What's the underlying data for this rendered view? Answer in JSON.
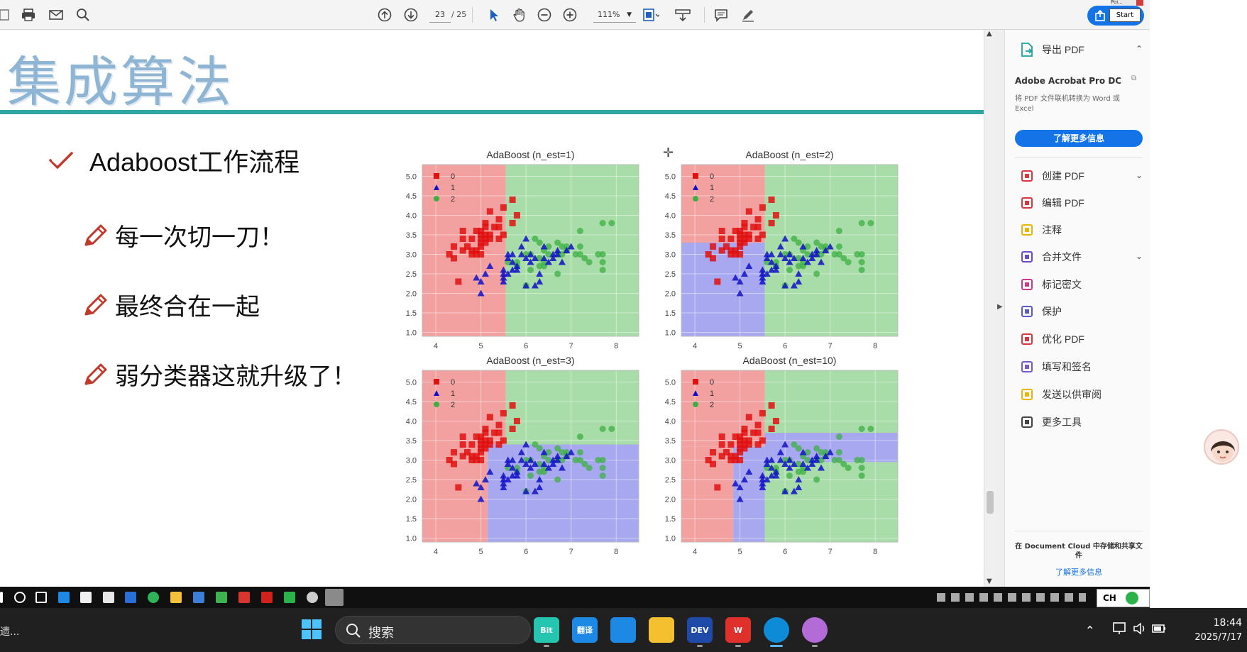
{
  "toolbar": {
    "page_current": "23",
    "page_total": "/ 25",
    "zoom": "111%"
  },
  "popup": {
    "start_top": "Poi...",
    "start_label": "Start"
  },
  "slide": {
    "title": "集成算法",
    "bullets": [
      {
        "text": "Adaboost工作流程"
      },
      {
        "text": "每一次切一刀！"
      },
      {
        "text": "最终合在一起"
      },
      {
        "text": "弱分类器这就升级了！"
      }
    ]
  },
  "chart_data": [
    {
      "type": "scatter",
      "title": "AdaBoost (n_est=1)",
      "xlim": [
        3.7,
        8.5
      ],
      "ylim": [
        0.9,
        5.3
      ],
      "xticks": [
        4,
        5,
        6,
        7,
        8
      ],
      "yticks": [
        "1.0",
        "1.5",
        "2.0",
        "2.5",
        "3.0",
        "3.5",
        "4.0",
        "4.5",
        "5.0"
      ],
      "legend": [
        "0",
        "1",
        "2"
      ],
      "legend_position": "top-left",
      "region_colors": {
        "0": "#f2a0a0",
        "1": "#a8a8f0",
        "2": "#a8dca8"
      },
      "regions": [
        {
          "class": "0",
          "x": [
            3.7,
            5.55
          ],
          "y": [
            0.9,
            5.3
          ]
        },
        {
          "class": "2",
          "x": [
            5.55,
            8.5
          ],
          "y": [
            0.9,
            5.3
          ]
        }
      ]
    },
    {
      "type": "scatter",
      "title": "AdaBoost (n_est=2)",
      "xlim": [
        3.7,
        8.5
      ],
      "ylim": [
        0.9,
        5.3
      ],
      "xticks": [
        4,
        5,
        6,
        7,
        8
      ],
      "yticks": [
        "1.0",
        "1.5",
        "2.0",
        "2.5",
        "3.0",
        "3.5",
        "4.0",
        "4.5",
        "5.0"
      ],
      "legend": [
        "0",
        "1",
        "2"
      ],
      "legend_position": "top-left",
      "region_colors": {
        "0": "#f2a0a0",
        "1": "#a8a8f0",
        "2": "#a8dca8"
      },
      "regions": [
        {
          "class": "0",
          "x": [
            3.7,
            5.55
          ],
          "y": [
            3.3,
            5.3
          ]
        },
        {
          "class": "1",
          "x": [
            3.7,
            5.55
          ],
          "y": [
            0.9,
            3.3
          ]
        },
        {
          "class": "2",
          "x": [
            5.55,
            8.5
          ],
          "y": [
            0.9,
            5.3
          ]
        }
      ]
    },
    {
      "type": "scatter",
      "title": "AdaBoost (n_est=3)",
      "xlim": [
        3.7,
        8.5
      ],
      "ylim": [
        0.9,
        5.3
      ],
      "xticks": [
        4,
        5,
        6,
        7,
        8
      ],
      "yticks": [
        "1.0",
        "1.5",
        "2.0",
        "2.5",
        "3.0",
        "3.5",
        "4.0",
        "4.5",
        "5.0"
      ],
      "legend": [
        "0",
        "1",
        "2"
      ],
      "legend_position": "top-left",
      "region_colors": {
        "0": "#f2a0a0",
        "1": "#a8a8f0",
        "2": "#a8dca8"
      },
      "regions": [
        {
          "class": "0",
          "x": [
            3.7,
            5.55
          ],
          "y": [
            3.4,
            5.3
          ]
        },
        {
          "class": "0",
          "x": [
            3.7,
            5.15
          ],
          "y": [
            0.9,
            3.4
          ]
        },
        {
          "class": "1",
          "x": [
            5.15,
            8.5
          ],
          "y": [
            0.9,
            3.4
          ]
        },
        {
          "class": "2",
          "x": [
            5.55,
            8.5
          ],
          "y": [
            3.4,
            5.3
          ]
        }
      ]
    },
    {
      "type": "scatter",
      "title": "AdaBoost (n_est=10)",
      "xlim": [
        3.7,
        8.5
      ],
      "ylim": [
        0.9,
        5.3
      ],
      "xticks": [
        4,
        5,
        6,
        7,
        8
      ],
      "yticks": [
        "1.0",
        "1.5",
        "2.0",
        "2.5",
        "3.0",
        "3.5",
        "4.0",
        "4.5",
        "5.0"
      ],
      "legend": [
        "0",
        "1",
        "2"
      ],
      "legend_position": "top-left",
      "region_colors": {
        "0": "#f2a0a0",
        "1": "#a8a8f0",
        "2": "#a8dca8"
      },
      "regions": [
        {
          "class": "0",
          "x": [
            3.7,
            5.55
          ],
          "y": [
            3.35,
            5.3
          ]
        },
        {
          "class": "0",
          "x": [
            3.7,
            4.85
          ],
          "y": [
            0.9,
            3.35
          ]
        },
        {
          "class": "1",
          "x": [
            4.85,
            5.55
          ],
          "y": [
            0.9,
            3.35
          ]
        },
        {
          "class": "2",
          "x": [
            5.55,
            8.5
          ],
          "y": [
            0.9,
            2.95
          ]
        },
        {
          "class": "1",
          "x": [
            5.55,
            8.5
          ],
          "y": [
            2.95,
            3.7
          ]
        },
        {
          "class": "2",
          "x": [
            5.55,
            8.5
          ],
          "y": [
            3.7,
            5.3
          ]
        }
      ]
    }
  ],
  "scatter_points": {
    "class_0": [
      [
        4.3,
        3.0
      ],
      [
        4.4,
        2.9
      ],
      [
        4.4,
        3.2
      ],
      [
        4.5,
        2.3
      ],
      [
        4.6,
        3.1
      ],
      [
        4.6,
        3.4
      ],
      [
        4.6,
        3.6
      ],
      [
        4.7,
        3.2
      ],
      [
        4.8,
        3.4
      ],
      [
        4.8,
        3.0
      ],
      [
        4.8,
        3.1
      ],
      [
        4.9,
        3.0
      ],
      [
        4.9,
        3.1
      ],
      [
        4.9,
        3.6
      ],
      [
        5.0,
        3.6
      ],
      [
        5.0,
        3.4
      ],
      [
        5.0,
        3.0
      ],
      [
        5.0,
        3.5
      ],
      [
        5.0,
        3.2
      ],
      [
        5.0,
        3.3
      ],
      [
        5.1,
        3.5
      ],
      [
        5.1,
        3.8
      ],
      [
        5.1,
        3.3
      ],
      [
        5.1,
        3.7
      ],
      [
        5.1,
        3.4
      ],
      [
        5.2,
        3.5
      ],
      [
        5.2,
        3.4
      ],
      [
        5.2,
        4.1
      ],
      [
        5.3,
        3.7
      ],
      [
        5.4,
        3.9
      ],
      [
        5.4,
        3.7
      ],
      [
        5.4,
        3.4
      ],
      [
        5.5,
        4.2
      ],
      [
        5.5,
        3.5
      ],
      [
        5.7,
        4.4
      ],
      [
        5.7,
        3.8
      ],
      [
        5.8,
        4.0
      ]
    ],
    "class_1": [
      [
        4.9,
        2.4
      ],
      [
        5.0,
        2.0
      ],
      [
        5.0,
        2.3
      ],
      [
        5.1,
        2.5
      ],
      [
        5.2,
        2.7
      ],
      [
        5.5,
        2.3
      ],
      [
        5.5,
        2.4
      ],
      [
        5.5,
        2.5
      ],
      [
        5.5,
        2.6
      ],
      [
        5.6,
        2.9
      ],
      [
        5.6,
        3.0
      ],
      [
        5.6,
        2.5
      ],
      [
        5.7,
        2.8
      ],
      [
        5.7,
        2.6
      ],
      [
        5.7,
        3.0
      ],
      [
        5.8,
        2.7
      ],
      [
        5.8,
        2.6
      ],
      [
        5.9,
        3.0
      ],
      [
        5.9,
        3.2
      ],
      [
        6.0,
        2.2
      ],
      [
        6.0,
        2.9
      ],
      [
        6.0,
        3.4
      ],
      [
        6.1,
        2.8
      ],
      [
        6.1,
        3.0
      ],
      [
        6.2,
        2.2
      ],
      [
        6.2,
        2.9
      ],
      [
        6.3,
        2.3
      ],
      [
        6.3,
        2.5
      ],
      [
        6.4,
        3.2
      ],
      [
        6.4,
        2.9
      ],
      [
        6.5,
        2.8
      ],
      [
        6.6,
        2.9
      ],
      [
        6.6,
        3.0
      ],
      [
        6.7,
        3.1
      ],
      [
        6.7,
        3.0
      ],
      [
        6.8,
        2.8
      ],
      [
        6.9,
        3.1
      ],
      [
        7.0,
        3.2
      ]
    ],
    "class_2": [
      [
        5.6,
        2.8
      ],
      [
        5.8,
        2.7
      ],
      [
        5.8,
        2.8
      ],
      [
        6.0,
        2.2
      ],
      [
        6.0,
        3.0
      ],
      [
        6.1,
        3.0
      ],
      [
        6.1,
        2.6
      ],
      [
        6.2,
        3.4
      ],
      [
        6.3,
        2.9
      ],
      [
        6.3,
        3.3
      ],
      [
        6.3,
        2.7
      ],
      [
        6.4,
        2.8
      ],
      [
        6.4,
        3.1
      ],
      [
        6.4,
        2.7
      ],
      [
        6.5,
        3.0
      ],
      [
        6.5,
        3.2
      ],
      [
        6.7,
        3.3
      ],
      [
        6.7,
        2.5
      ],
      [
        6.7,
        3.0
      ],
      [
        6.8,
        3.0
      ],
      [
        6.8,
        3.2
      ],
      [
        6.9,
        3.1
      ],
      [
        6.9,
        3.2
      ],
      [
        7.1,
        3.0
      ],
      [
        7.2,
        3.6
      ],
      [
        7.2,
        3.2
      ],
      [
        7.2,
        3.0
      ],
      [
        7.3,
        2.9
      ],
      [
        7.4,
        2.8
      ],
      [
        7.6,
        3.0
      ],
      [
        7.7,
        3.8
      ],
      [
        7.7,
        2.6
      ],
      [
        7.7,
        2.8
      ],
      [
        7.7,
        3.0
      ],
      [
        7.9,
        3.8
      ]
    ]
  },
  "right_pane": {
    "export": "导出 PDF",
    "product_title": "Adobe Acrobat Pro DC",
    "product_desc": "将 PDF 文件联机转换为 Word 或 Excel",
    "learn_more_button": "了解更多信息",
    "items": [
      {
        "label": "创建 PDF",
        "color": "#d7373f",
        "chevron": "⌄"
      },
      {
        "label": "编辑 PDF",
        "color": "#d7373f",
        "chevron": ""
      },
      {
        "label": "注释",
        "color": "#e8b600",
        "chevron": ""
      },
      {
        "label": "合并文件",
        "color": "#6d4ac6",
        "chevron": "⌄"
      },
      {
        "label": "标记密文",
        "color": "#c93b8a",
        "chevron": ""
      },
      {
        "label": "保护",
        "color": "#5a5ac8",
        "chevron": ""
      },
      {
        "label": "优化 PDF",
        "color": "#d7373f",
        "chevron": ""
      },
      {
        "label": "填写和签名",
        "color": "#7a5ac8",
        "chevron": ""
      },
      {
        "label": "发送以供审阅",
        "color": "#e8b600",
        "chevron": ""
      },
      {
        "label": "更多工具",
        "color": "#444444",
        "chevron": ""
      }
    ],
    "footer_text": "在 Document Cloud 中存储和共享文件",
    "footer_link": "了解更多信息"
  },
  "ime": {
    "label": "CH"
  },
  "taskbar": {
    "left_text": "遗...",
    "search_label": "搜索",
    "time": "18:44",
    "date": "2025/7/17",
    "apps": [
      {
        "name": "bit",
        "label": "Bit",
        "color": "#25c5b0",
        "active": false
      },
      {
        "name": "translate",
        "label": "翻译",
        "color": "#1e88e5",
        "active": false
      },
      {
        "name": "vscode",
        "label": "",
        "color": "#1e88e5",
        "active": false
      },
      {
        "name": "explorer",
        "label": "",
        "color": "#f4c030",
        "active": false
      },
      {
        "name": "devc",
        "label": "DEV",
        "color": "#1f4aa8",
        "active": false
      },
      {
        "name": "wps",
        "label": "W",
        "color": "#e0302b",
        "active": false
      },
      {
        "name": "edge",
        "label": "",
        "color": "#0e8bd6",
        "active": true
      },
      {
        "name": "cat",
        "label": "",
        "color": "#b36bd8",
        "active": false
      }
    ]
  }
}
